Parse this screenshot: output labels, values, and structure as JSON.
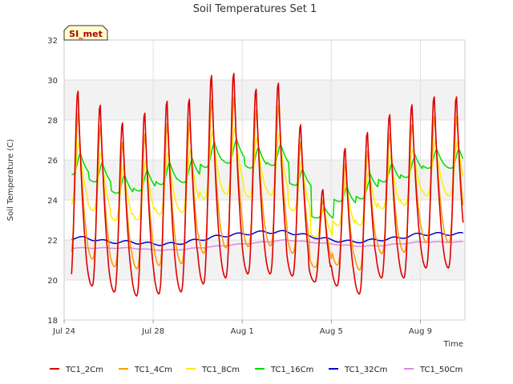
{
  "chart_data": {
    "type": "line",
    "title": "Soil Temperatures Set 1",
    "xlabel": "Time",
    "ylabel": "Soil Temperature (C)",
    "badge": "SI_met",
    "ylim": [
      18,
      32
    ],
    "yticks": [
      18,
      20,
      22,
      24,
      26,
      28,
      30,
      32
    ],
    "xlim": [
      "2023-07-24",
      "2023-08-11"
    ],
    "xticks": [
      {
        "date": "2023-07-24",
        "label": "Jul 24"
      },
      {
        "date": "2023-07-28",
        "label": "Jul 28"
      },
      {
        "date": "2023-08-01",
        "label": "Aug 1"
      },
      {
        "date": "2023-08-05",
        "label": "Aug 5"
      },
      {
        "date": "2023-08-09",
        "label": "Aug 9"
      }
    ],
    "shaded_bands": [
      [
        20,
        22
      ],
      [
        24,
        26
      ],
      [
        28,
        30
      ]
    ],
    "grid": true,
    "legend_position": "bottom",
    "x_range": [
      "2023-07-24T08:00",
      "2023-08-10T22:00"
    ],
    "daily_peaks_TC1_2Cm": [
      29.6,
      28.9,
      28.0,
      28.5,
      29.1,
      29.2,
      30.4,
      30.5,
      29.7,
      30.0,
      27.9,
      24.6,
      26.7,
      27.5,
      28.4,
      28.9,
      29.3
    ],
    "daily_minima_TC1_2Cm": [
      19.8,
      19.7,
      19.4,
      19.2,
      19.3,
      19.4,
      19.8,
      20.1,
      20.3,
      20.3,
      20.2,
      19.9,
      19.7,
      19.3,
      20.1,
      20.1,
      20.6
    ],
    "series": [
      {
        "name": "TC1_2Cm",
        "color": "#dd0000",
        "amp": 1.0,
        "lag": 0.0,
        "base_shift": 0.0
      },
      {
        "name": "TC1_4Cm",
        "color": "#ff9900",
        "amp": 0.73,
        "lag": 0.02,
        "base_shift": 0.35
      },
      {
        "name": "TC1_8Cm",
        "color": "#ffee00",
        "amp": 0.32,
        "lag": 0.05,
        "base_shift": 0.95
      },
      {
        "name": "TC1_16Cm",
        "color": "#00dd00",
        "amp": 0.11,
        "lag": 0.12,
        "base_shift": 1.25
      },
      {
        "name": "TC1_32Cm",
        "color": "#0000cc",
        "smooth": [
          22.1,
          22.1,
          21.9,
          21.9,
          21.8,
          21.8,
          22.0,
          22.2,
          22.3,
          22.4,
          22.4,
          22.2,
          22.0,
          21.9,
          22.0,
          22.1,
          22.3
        ],
        "ripple": 0.07
      },
      {
        "name": "TC1_50Cm",
        "color": "#dd88dd",
        "smooth": [
          21.6,
          21.6,
          21.6,
          21.6,
          21.5,
          21.5,
          21.6,
          21.7,
          21.8,
          21.9,
          22.0,
          21.9,
          21.8,
          21.7,
          21.7,
          21.8,
          21.9
        ],
        "ripple": 0.02
      }
    ]
  }
}
